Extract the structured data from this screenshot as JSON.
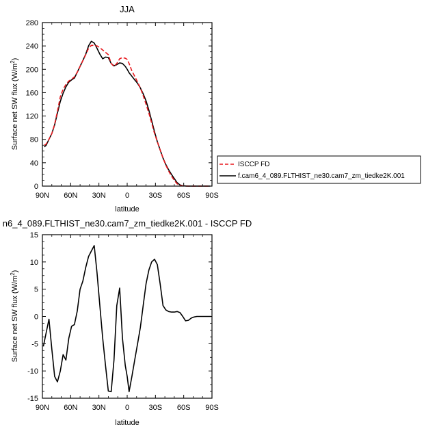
{
  "chart_data": [
    {
      "type": "line",
      "title": "JJA",
      "xlabel": "latitude",
      "ylabel": "Surface net SW flux (W/m²)",
      "ylabel_main": "Surface net SW flux (W/m",
      "ylabel_sup": "2",
      "ylabel_close": ")",
      "xlim": [
        90,
        -90
      ],
      "ylim": [
        0,
        280
      ],
      "x_ticks": [
        90,
        60,
        30,
        0,
        -30,
        -60,
        -90
      ],
      "x_tick_labels": [
        "90N",
        "60N",
        "30N",
        "0",
        "30S",
        "60S",
        "90S"
      ],
      "y_ticks": [
        0,
        40,
        80,
        120,
        160,
        200,
        240,
        280
      ],
      "y_tick_labels": [
        "0",
        "40",
        "80",
        "120",
        "160",
        "200",
        "240",
        "280"
      ],
      "legend_position": "right",
      "series": [
        {
          "name": "ISCCP FD",
          "color": "#e8191e",
          "dash": true,
          "x": [
            88,
            86,
            83,
            80,
            77,
            74,
            71,
            68,
            65,
            62,
            59,
            56,
            53,
            50,
            47,
            44,
            41,
            38,
            35,
            32,
            29,
            26,
            23,
            20,
            17,
            14,
            11,
            8,
            5,
            2,
            0,
            -2,
            -5,
            -8,
            -11,
            -14,
            -17,
            -20,
            -23,
            -26,
            -29,
            -32,
            -35,
            -38,
            -41,
            -44,
            -47,
            -50,
            -53,
            -56,
            -59,
            -62,
            -65,
            -68,
            -71,
            -74,
            -77,
            -80,
            -83,
            -86,
            -88
          ],
          "y": [
            70,
            72,
            80,
            90,
            106,
            128,
            153,
            166,
            174,
            180,
            183,
            187,
            195,
            205,
            215,
            225,
            236,
            241,
            241,
            240,
            237,
            233,
            229,
            225,
            210,
            205,
            210,
            218,
            220,
            219,
            217,
            210,
            197,
            188,
            178,
            168,
            155,
            140,
            125,
            108,
            90,
            76,
            62,
            48,
            36,
            26,
            17,
            10,
            4,
            1.2,
            0.4,
            0.1,
            0,
            0,
            0,
            0,
            0,
            0,
            0,
            0,
            0
          ]
        },
        {
          "name": "f.cam6_4_089.FLTHIST_ne30.cam7_zm_tiedke2K.001",
          "color": "#000000",
          "dash": false,
          "x": [
            88,
            86,
            83,
            80,
            77,
            74,
            71,
            68,
            65,
            62,
            59,
            56,
            53,
            50,
            47,
            44,
            41,
            38,
            35,
            32,
            29,
            26,
            23,
            20,
            17,
            14,
            11,
            8,
            5,
            2,
            0,
            -2,
            -5,
            -8,
            -11,
            -14,
            -17,
            -20,
            -23,
            -26,
            -29,
            -32,
            -35,
            -38,
            -41,
            -44,
            -47,
            -50,
            -53,
            -56,
            -59,
            -62,
            -65,
            -68,
            -71,
            -74,
            -77,
            -80,
            -83,
            -86,
            -88
          ],
          "y": [
            67,
            70,
            80,
            90,
            105,
            125,
            145,
            159,
            170,
            178,
            182,
            185,
            195,
            205,
            215,
            226,
            240,
            248,
            245,
            236,
            226,
            218,
            221,
            220,
            210,
            206,
            208,
            211,
            210,
            205,
            200,
            194,
            188,
            182,
            176,
            168,
            158,
            146,
            130,
            112,
            93,
            76,
            62,
            48,
            37,
            28,
            20,
            13,
            6,
            2,
            0.6,
            0.2,
            0.05,
            0,
            0,
            0,
            0,
            0,
            0,
            0,
            0
          ]
        }
      ]
    },
    {
      "type": "line",
      "title": "n6_4_089.FLTHIST_ne30.cam7_zm_tiedke2K.001 - ISCCP FD",
      "xlabel": "latitude",
      "ylabel": "Surface net SW flux (W/m²)",
      "ylabel_main": "Surface net SW flux (W/m",
      "ylabel_sup": "2",
      "ylabel_close": ")",
      "xlim": [
        90,
        -90
      ],
      "ylim": [
        -15,
        15
      ],
      "x_ticks": [
        90,
        60,
        30,
        0,
        -30,
        -60,
        -90
      ],
      "x_tick_labels": [
        "90N",
        "60N",
        "30N",
        "0",
        "30S",
        "60S",
        "90S"
      ],
      "y_ticks": [
        -15,
        -10,
        -5,
        0,
        5,
        10,
        15
      ],
      "y_tick_labels": [
        "-15",
        "-10",
        "-5",
        "0",
        "5",
        "10",
        "15"
      ],
      "series": [
        {
          "color": "#000000",
          "dash": false,
          "x": [
            89,
            86,
            83,
            80,
            77,
            74,
            71,
            68,
            65,
            62,
            59,
            56,
            53,
            50,
            47,
            44,
            41,
            38,
            35,
            32,
            29,
            26,
            23,
            20,
            17,
            14,
            11,
            8,
            5,
            2,
            0,
            -2,
            -5,
            -8,
            -11,
            -14,
            -17,
            -20,
            -23,
            -26,
            -29,
            -32,
            -35,
            -38,
            -41,
            -44,
            -47,
            -50,
            -53,
            -56,
            -59,
            -62,
            -65,
            -68,
            -71,
            -74,
            -77,
            -80,
            -83,
            -86,
            -89
          ],
          "y": [
            -5.5,
            -3,
            -0.5,
            -6,
            -11,
            -12,
            -10,
            -7,
            -8,
            -4,
            -1.8,
            -1.5,
            1,
            5,
            6.5,
            9,
            11,
            12,
            13,
            8,
            2,
            -4,
            -9,
            -13.7,
            -13.8,
            -8,
            2,
            5.2,
            -4,
            -9,
            -11,
            -13.8,
            -11,
            -8,
            -5,
            -2,
            2,
            6,
            8.5,
            10,
            10.5,
            9.5,
            6,
            2,
            1.2,
            0.9,
            0.8,
            0.8,
            0.9,
            0.7,
            0,
            -0.8,
            -0.7,
            -0.3,
            -0.1,
            0,
            0,
            0,
            0,
            0,
            0
          ]
        }
      ]
    }
  ]
}
